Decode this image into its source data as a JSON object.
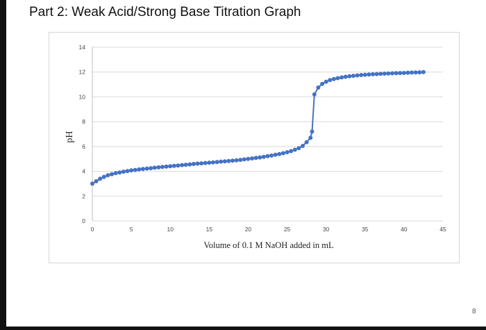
{
  "page": {
    "title": "Part 2: Weak Acid/Strong Base Titration Graph",
    "page_number": "8"
  },
  "chart_data": {
    "type": "scatter",
    "title": "",
    "xlabel": "Volume of 0.1 M NaOH added in mL",
    "ylabel": "pH",
    "xlim": [
      0,
      45
    ],
    "ylim": [
      0,
      14
    ],
    "x_ticks": [
      "0",
      "5",
      "10",
      "15",
      "20",
      "25",
      "30",
      "35",
      "40",
      "45"
    ],
    "y_ticks": [
      "0",
      "2",
      "4",
      "6",
      "8",
      "10",
      "12",
      "14"
    ],
    "grid": true,
    "line_color": "#4472C4",
    "marker_color": "#4472C4",
    "series": [
      {
        "x": [
          0,
          0.5,
          1,
          1.5,
          2,
          2.5,
          3,
          3.5,
          4,
          4.5,
          5,
          5.5,
          6,
          6.5,
          7,
          7.5,
          8,
          8.5,
          9,
          9.5,
          10,
          10.5,
          11,
          11.5,
          12,
          12.5,
          13,
          13.5,
          14,
          14.5,
          15,
          15.5,
          16,
          16.5,
          17,
          17.5,
          18,
          18.5,
          19,
          19.5,
          20,
          20.5,
          21,
          21.5,
          22,
          22.5,
          23,
          23.5,
          24,
          24.5,
          25,
          25.5,
          26,
          26.5,
          27,
          27.5,
          28,
          28.2,
          28.5,
          29,
          29.5,
          30,
          30.5,
          31,
          31.5,
          32,
          32.5,
          33,
          33.5,
          34,
          34.5,
          35,
          35.5,
          36,
          36.5,
          37,
          37.5,
          38,
          38.5,
          39,
          39.5,
          40,
          40.5,
          41,
          41.5,
          42,
          42.5
        ],
        "y": [
          3.0,
          3.2,
          3.4,
          3.55,
          3.68,
          3.77,
          3.85,
          3.91,
          3.97,
          4.02,
          4.07,
          4.11,
          4.15,
          4.19,
          4.22,
          4.25,
          4.29,
          4.32,
          4.35,
          4.38,
          4.41,
          4.44,
          4.47,
          4.5,
          4.53,
          4.56,
          4.59,
          4.62,
          4.64,
          4.67,
          4.7,
          4.72,
          4.75,
          4.78,
          4.8,
          4.83,
          4.86,
          4.89,
          4.92,
          4.96,
          5.0,
          5.04,
          5.08,
          5.12,
          5.17,
          5.22,
          5.27,
          5.33,
          5.39,
          5.46,
          5.54,
          5.63,
          5.74,
          5.87,
          6.05,
          6.35,
          6.7,
          7.2,
          10.2,
          10.75,
          11.05,
          11.22,
          11.35,
          11.44,
          11.51,
          11.57,
          11.62,
          11.66,
          11.7,
          11.73,
          11.76,
          11.78,
          11.8,
          11.82,
          11.84,
          11.86,
          11.87,
          11.89,
          11.9,
          11.91,
          11.92,
          11.93,
          11.95,
          11.96,
          11.97,
          11.98,
          12.0
        ]
      }
    ]
  }
}
